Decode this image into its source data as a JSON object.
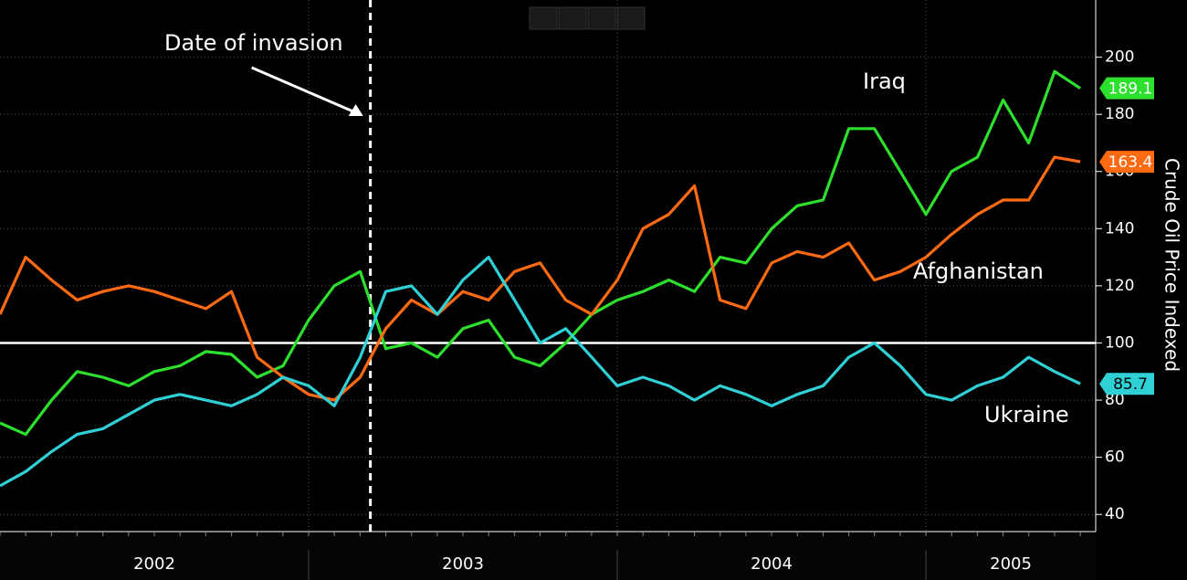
{
  "chart_data": {
    "type": "line",
    "y_axis_label": "Crude Oil Price Indexed",
    "x": [
      2002.0,
      2002.083,
      2002.167,
      2002.25,
      2002.333,
      2002.417,
      2002.5,
      2002.583,
      2002.667,
      2002.75,
      2002.833,
      2002.917,
      2003.0,
      2003.083,
      2003.167,
      2003.25,
      2003.333,
      2003.417,
      2003.5,
      2003.583,
      2003.667,
      2003.75,
      2003.833,
      2003.917,
      2004.0,
      2004.083,
      2004.167,
      2004.25,
      2004.333,
      2004.417,
      2004.5,
      2004.583,
      2004.667,
      2004.75,
      2004.833,
      2004.917,
      2005.0,
      2005.083,
      2005.167,
      2005.25,
      2005.333,
      2005.417,
      2005.5
    ],
    "series": [
      {
        "name": "Iraq",
        "color": "#2ee02e",
        "last_label": "189.1",
        "values": [
          72,
          68,
          80,
          90,
          88,
          85,
          90,
          92,
          97,
          96,
          88,
          92,
          108,
          120,
          125,
          98,
          100,
          95,
          105,
          108,
          95,
          92,
          100,
          110,
          115,
          118,
          122,
          118,
          130,
          128,
          140,
          148,
          150,
          175,
          175,
          160,
          145,
          160,
          165,
          185,
          170,
          195,
          189.1
        ]
      },
      {
        "name": "Afghanistan",
        "color": "#ff6a13",
        "last_label": "163.4",
        "values": [
          110,
          130,
          122,
          115,
          118,
          120,
          118,
          115,
          112,
          118,
          95,
          88,
          82,
          80,
          88,
          105,
          115,
          110,
          118,
          115,
          125,
          128,
          115,
          110,
          122,
          140,
          145,
          155,
          115,
          112,
          128,
          132,
          130,
          135,
          122,
          125,
          130,
          138,
          145,
          150,
          150,
          165,
          163.4
        ]
      },
      {
        "name": "Ukraine",
        "color": "#2fd0d6",
        "last_label": "85.7",
        "values": [
          50,
          55,
          62,
          68,
          70,
          75,
          80,
          82,
          80,
          78,
          82,
          88,
          85,
          78,
          95,
          118,
          120,
          110,
          122,
          130,
          115,
          100,
          105,
          95,
          85,
          88,
          85,
          80,
          85,
          82,
          78,
          82,
          85,
          95,
          100,
          92,
          82,
          80,
          85,
          88,
          95,
          90,
          85.7
        ]
      }
    ],
    "xlim": [
      2002.0,
      2005.55
    ],
    "xticks": [
      {
        "value": 2002,
        "label": "2002"
      },
      {
        "value": 2003,
        "label": "2003"
      },
      {
        "value": 2004,
        "label": "2004"
      },
      {
        "value": 2005,
        "label": "2005"
      }
    ],
    "ylim": [
      34,
      220
    ],
    "yticks": [
      40,
      60,
      80,
      100,
      120,
      140,
      160,
      180,
      200
    ],
    "reference_line": 100,
    "grid": true,
    "annotation": {
      "text": "Date of invasion",
      "x": 2003.2
    }
  }
}
